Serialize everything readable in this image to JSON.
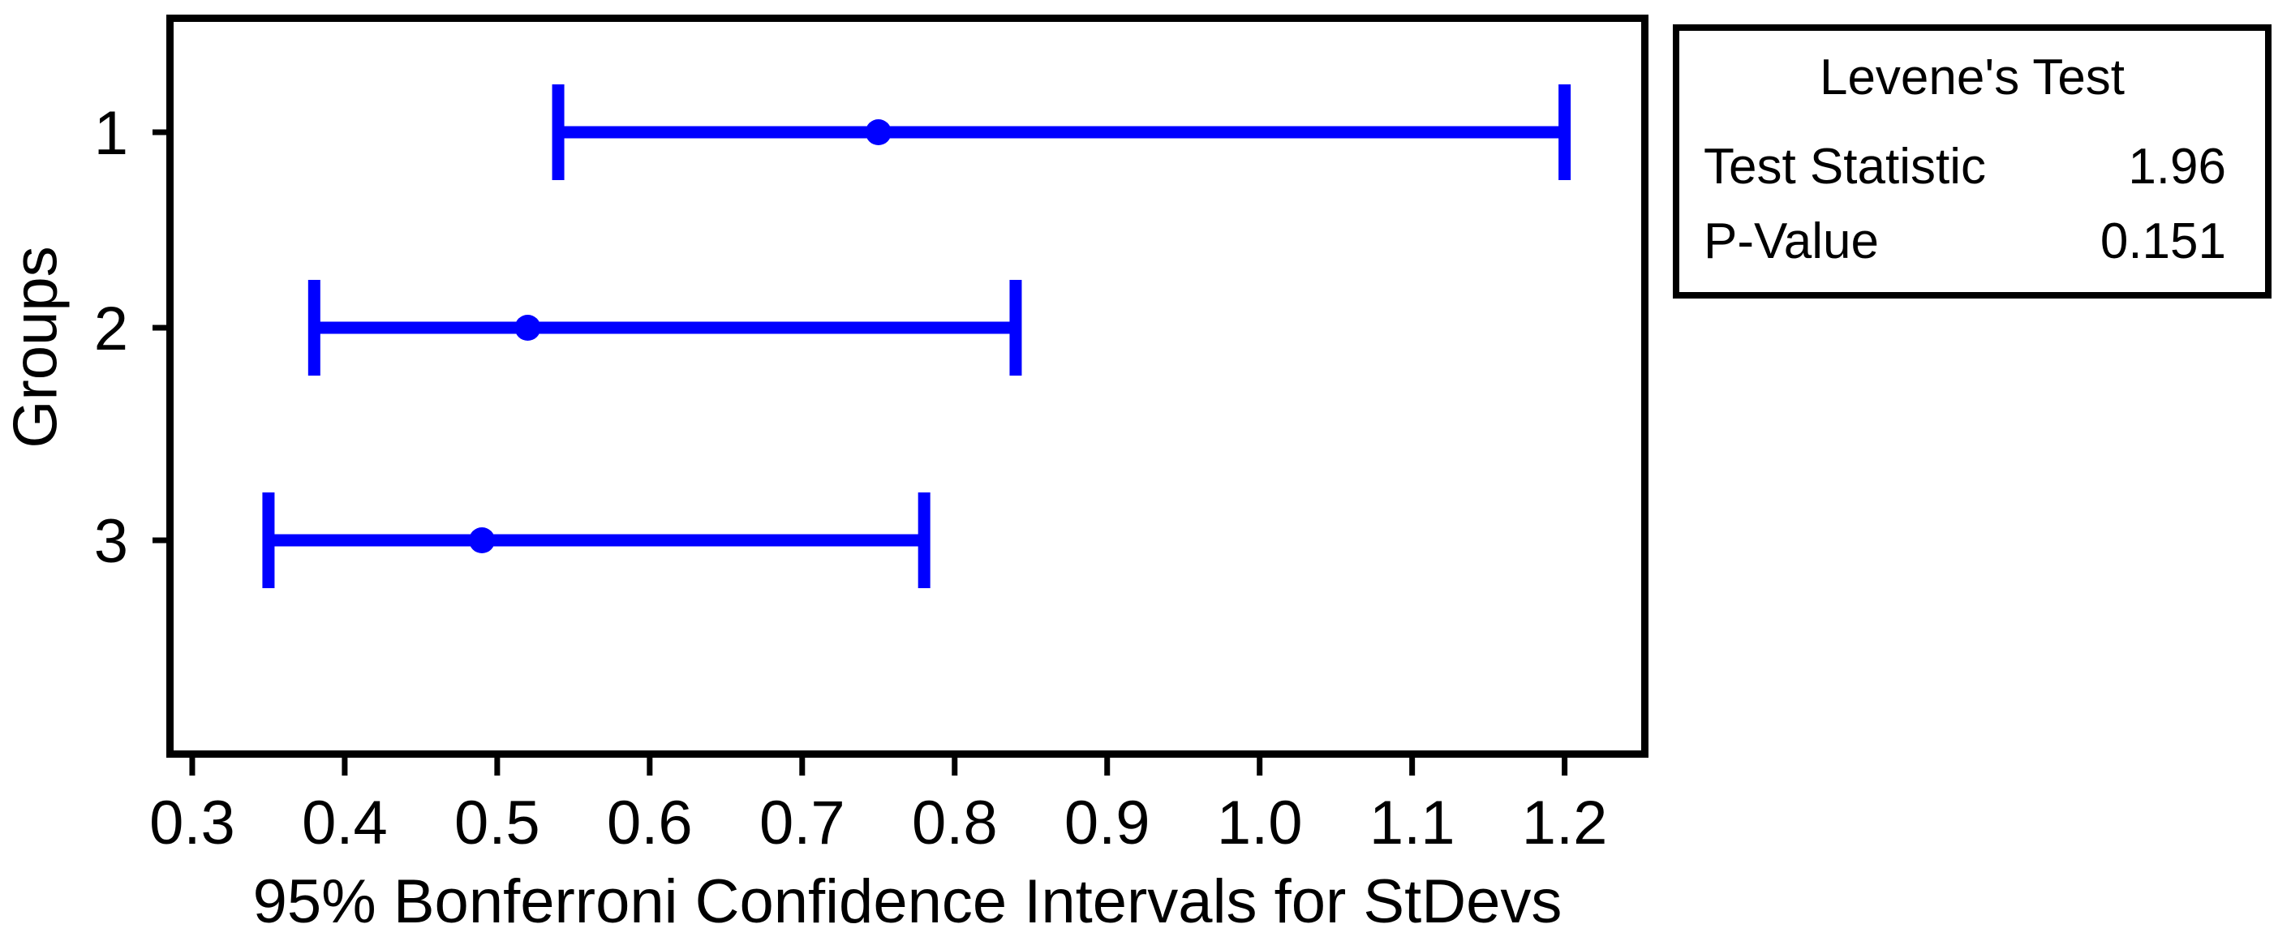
{
  "chart_data": {
    "type": "interval_plot",
    "description": "95% Bonferroni confidence intervals for standard deviations by group (test for equal variances)",
    "x_axis": {
      "label": "95% Bonferroni Confidence Intervals for StDevs",
      "range": [
        0.283,
        1.255
      ],
      "ticks": [
        0.3,
        0.4,
        0.5,
        0.6,
        0.7,
        0.8,
        0.9,
        1.0,
        1.1,
        1.2
      ],
      "tick_labels": [
        "0.3",
        "0.4",
        "0.5",
        "0.6",
        "0.7",
        "0.8",
        "0.9",
        "1.0",
        "1.1",
        "1.2"
      ]
    },
    "y_axis": {
      "label": "Groups"
    },
    "groups": [
      {
        "label": "1",
        "lower": 0.54,
        "stdev": 0.75,
        "upper": 1.2
      },
      {
        "label": "2",
        "lower": 0.38,
        "stdev": 0.52,
        "upper": 0.84
      },
      {
        "label": "3",
        "lower": 0.35,
        "stdev": 0.49,
        "upper": 0.78
      }
    ],
    "interval_color": "#0000ff",
    "axis_color": "#000000",
    "grid": "off",
    "legend_position": "none"
  },
  "levene": {
    "title": "Levene's Test",
    "rows": [
      {
        "label": "Test Statistic",
        "value": "1.96"
      },
      {
        "label": "P-Value",
        "value": "0.151"
      }
    ]
  }
}
